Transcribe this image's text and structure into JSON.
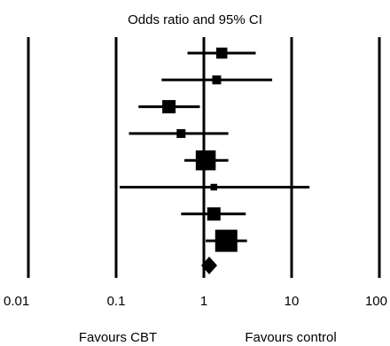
{
  "chart_data": {
    "type": "scatter",
    "title": "Odds ratio and 95% CI",
    "x_scale": "log",
    "xlim": [
      0.01,
      100
    ],
    "reference_lines": [
      0.01,
      0.1,
      1,
      10,
      100
    ],
    "ticks": [
      "0.01",
      "0.1",
      "1",
      "10",
      "100"
    ],
    "favours_left": "Favours CBT",
    "favours_right": "Favours control",
    "studies": [
      {
        "or": 1.6,
        "lo": 0.65,
        "hi": 3.9,
        "weight": 3
      },
      {
        "or": 1.4,
        "lo": 0.33,
        "hi": 6.0,
        "weight": 2
      },
      {
        "or": 0.4,
        "lo": 0.18,
        "hi": 0.9,
        "weight": 4
      },
      {
        "or": 0.55,
        "lo": 0.14,
        "hi": 1.9,
        "weight": 2
      },
      {
        "or": 1.05,
        "lo": 0.6,
        "hi": 1.9,
        "weight": 7
      },
      {
        "or": 1.3,
        "lo": 0.11,
        "hi": 16,
        "weight": 1
      },
      {
        "or": 1.3,
        "lo": 0.55,
        "hi": 3.0,
        "weight": 4
      },
      {
        "or": 1.8,
        "lo": 1.05,
        "hi": 3.1,
        "weight": 8
      }
    ],
    "pooled": {
      "or": 1.15,
      "lo": 0.95,
      "hi": 1.4
    }
  }
}
